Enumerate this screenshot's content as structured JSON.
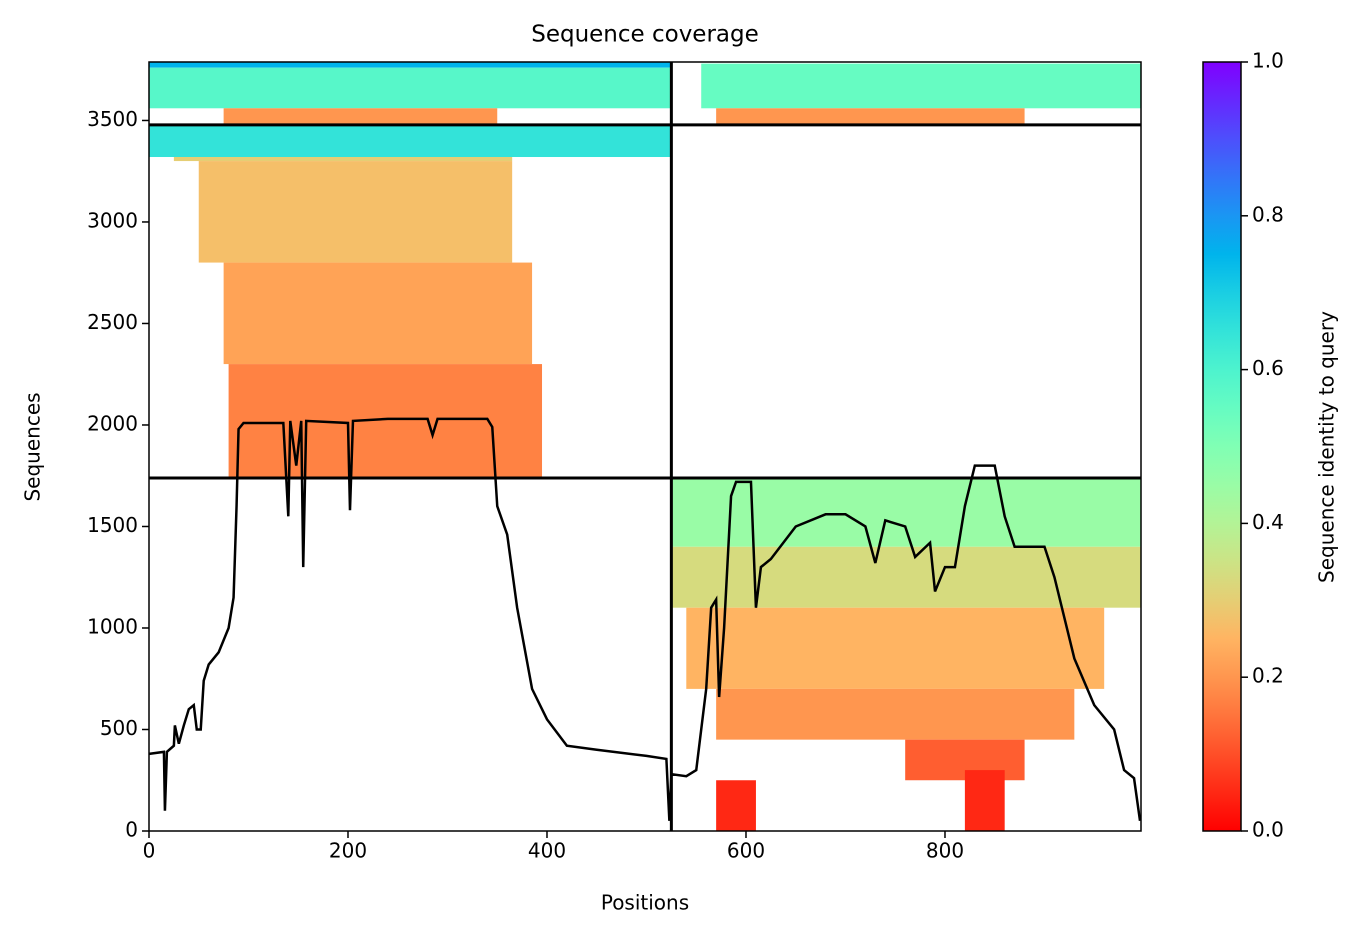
{
  "chart_data": {
    "type": "coverage",
    "title": "Sequence coverage",
    "x_label": "Positions",
    "y_label": "Sequences",
    "colorbar_label": "Sequence identity to query",
    "xlim": [
      0,
      997
    ],
    "xticks": [
      0,
      200,
      400,
      600,
      800
    ],
    "ylim": [
      0,
      3788
    ],
    "yticks": [
      0,
      500,
      1000,
      1500,
      2000,
      2500,
      3000,
      3500
    ],
    "clim": [
      0,
      1
    ],
    "cticks": [
      {
        "value": 0,
        "label": "0.0"
      },
      {
        "value": 0.2,
        "label": "0.2"
      },
      {
        "value": 0.4,
        "label": "0.4"
      },
      {
        "value": 0.6,
        "label": "0.6"
      },
      {
        "value": 0.8,
        "label": "0.8"
      },
      {
        "value": 1,
        "label": "1.0"
      }
    ],
    "colormap": "rainbow_r",
    "dividers": {
      "x": [
        525
      ],
      "y": [
        1739,
        3478
      ]
    },
    "blocks": {
      "x0": [
        0,
        0,
        75,
        555,
        570,
        0,
        25,
        50,
        75,
        80,
        525,
        525,
        540,
        570,
        760,
        570,
        820
      ],
      "x1": [
        525,
        525,
        350,
        997,
        880,
        525,
        365,
        365,
        385,
        395,
        997,
        997,
        960,
        930,
        880,
        610,
        860
      ],
      "y0": [
        3760,
        3560,
        3478,
        3560,
        3478,
        3320,
        3300,
        2800,
        2300,
        1739,
        1400,
        1100,
        700,
        450,
        250,
        0,
        0
      ],
      "y1": [
        3788,
        3760,
        3560,
        3780,
        3560,
        3478,
        3320,
        3300,
        2800,
        2300,
        1739,
        1400,
        1100,
        700,
        450,
        250,
        300
      ],
      "identity": [
        0.75,
        0.58,
        0.2,
        0.55,
        0.2,
        0.65,
        0.3,
        0.27,
        0.22,
        0.17,
        0.45,
        0.33,
        0.25,
        0.2,
        0.12,
        0.05,
        0.05
      ]
    },
    "coverage": {
      "color": "#000000",
      "x": [
        0,
        15,
        16,
        18,
        25,
        26,
        30,
        35,
        40,
        45,
        48,
        52,
        55,
        60,
        70,
        80,
        85,
        88,
        90,
        95,
        135,
        140,
        142,
        148,
        153,
        155,
        158,
        200,
        202,
        205,
        240,
        280,
        285,
        290,
        340,
        345,
        350,
        360,
        370,
        385,
        400,
        420,
        450,
        500,
        520,
        523,
        525,
        540,
        550,
        560,
        565,
        570,
        573,
        578,
        585,
        590,
        605,
        610,
        615,
        625,
        650,
        680,
        700,
        720,
        730,
        740,
        760,
        770,
        785,
        790,
        800,
        810,
        820,
        830,
        850,
        860,
        870,
        900,
        910,
        930,
        950,
        970,
        980,
        990,
        996
      ],
      "values": [
        380,
        390,
        100,
        390,
        420,
        520,
        430,
        520,
        600,
        620,
        500,
        500,
        740,
        820,
        880,
        1000,
        1150,
        1600,
        1980,
        2010,
        2010,
        1550,
        2020,
        1800,
        2020,
        1300,
        2020,
        2010,
        1580,
        2020,
        2030,
        2030,
        1950,
        2030,
        2030,
        1990,
        1600,
        1460,
        1100,
        700,
        550,
        420,
        400,
        370,
        355,
        50,
        280,
        270,
        300,
        700,
        1100,
        1140,
        660,
        1000,
        1650,
        1720,
        1720,
        1100,
        1300,
        1340,
        1500,
        1560,
        1560,
        1500,
        1320,
        1530,
        1500,
        1350,
        1420,
        1180,
        1300,
        1300,
        1600,
        1800,
        1800,
        1550,
        1400,
        1400,
        1250,
        850,
        620,
        500,
        300,
        260,
        50
      ]
    }
  }
}
